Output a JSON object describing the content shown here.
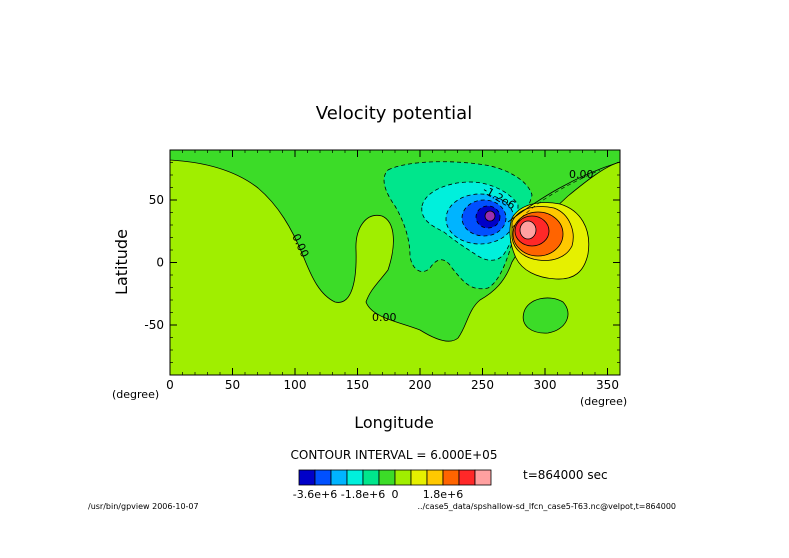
{
  "chart_data": {
    "type": "contour",
    "title": "Velocity potential",
    "xlabel": "Longitude",
    "ylabel": "Latitude",
    "x_unit": "(degree)",
    "y_unit": "(degree)",
    "xlim": [
      0,
      360
    ],
    "ylim": [
      -90,
      90
    ],
    "x_ticks": [
      0,
      50,
      100,
      150,
      200,
      250,
      300,
      350
    ],
    "y_ticks": [
      -50,
      0,
      50
    ],
    "contour_interval_text": "CONTOUR INTERVAL = 6.000E+05",
    "contour_labels": [
      "0.00",
      "0.00",
      "0.00",
      "-1.2e6"
    ],
    "time_label": "t=864000 sec",
    "colorbar": {
      "colors": [
        "#0000c8",
        "#0050ff",
        "#00b4ff",
        "#00f0dc",
        "#00e68c",
        "#3cdc28",
        "#a0ee00",
        "#e6f000",
        "#ffc800",
        "#ff6400",
        "#ff2828",
        "#ffa0a0"
      ],
      "labels": [
        "-3.6e+6",
        "-1.8e+6",
        "0",
        "1.8e+6"
      ]
    },
    "features": [
      {
        "kind": "min",
        "lon": 258,
        "lat": 37
      },
      {
        "kind": "max",
        "lon": 288,
        "lat": 25
      }
    ]
  },
  "footer": {
    "left": "/usr/bin/gpview 2006-10-07",
    "right": "../case5_data/spshallow-sd_lfcn_case5-T63.nc@velpot,t=864000"
  }
}
